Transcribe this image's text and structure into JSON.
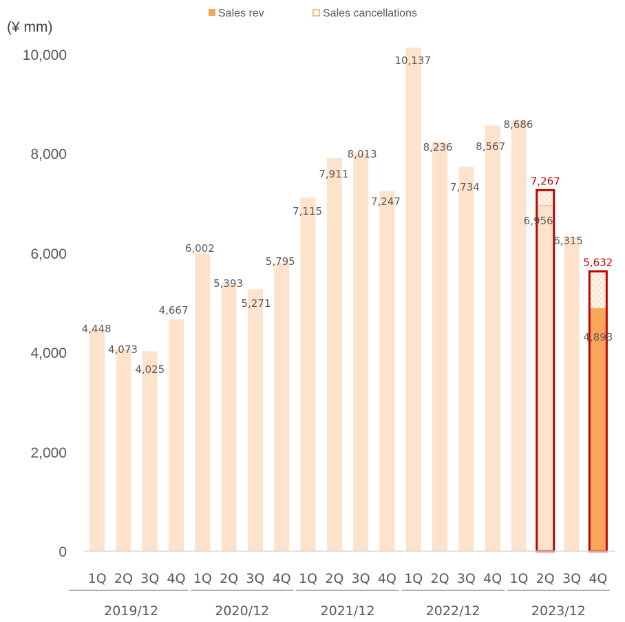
{
  "chart_data": {
    "type": "bar",
    "unit_label": "(¥ mm)",
    "legend": [
      {
        "name": "Sales rev",
        "color": "#f9a55a",
        "style": "filled"
      },
      {
        "name": "Sales cancellations",
        "color": "#f9a55a",
        "style": "outline"
      }
    ],
    "legend_position": "top",
    "ylim": [
      0,
      10000
    ],
    "yticks": [
      0,
      2000,
      4000,
      6000,
      8000,
      10000
    ],
    "ytick_labels": [
      "0",
      "2,000",
      "4,000",
      "6,000",
      "8,000",
      "10,000"
    ],
    "grid": false,
    "groups": [
      {
        "label": "2019/12",
        "quarters": [
          "1Q",
          "2Q",
          "3Q",
          "4Q"
        ]
      },
      {
        "label": "2020/12",
        "quarters": [
          "1Q",
          "2Q",
          "3Q",
          "4Q"
        ]
      },
      {
        "label": "2021/12",
        "quarters": [
          "1Q",
          "2Q",
          "3Q",
          "4Q"
        ]
      },
      {
        "label": "2022/12",
        "quarters": [
          "1Q",
          "2Q",
          "3Q",
          "4Q"
        ]
      },
      {
        "label": "2023/12",
        "quarters": [
          "1Q",
          "2Q",
          "3Q",
          "4Q"
        ]
      }
    ],
    "bars": [
      {
        "year": "2019/12",
        "quarter": "1Q",
        "value": 4448,
        "label": "4,448"
      },
      {
        "year": "2019/12",
        "quarter": "2Q",
        "value": 4073,
        "label": "4,073"
      },
      {
        "year": "2019/12",
        "quarter": "3Q",
        "value": 4025,
        "label": "4,025"
      },
      {
        "year": "2019/12",
        "quarter": "4Q",
        "value": 4667,
        "label": "4,667"
      },
      {
        "year": "2020/12",
        "quarter": "1Q",
        "value": 6002,
        "label": "6,002"
      },
      {
        "year": "2020/12",
        "quarter": "2Q",
        "value": 5393,
        "label": "5,393"
      },
      {
        "year": "2020/12",
        "quarter": "3Q",
        "value": 5271,
        "label": "5,271"
      },
      {
        "year": "2020/12",
        "quarter": "4Q",
        "value": 5795,
        "label": "5,795"
      },
      {
        "year": "2021/12",
        "quarter": "1Q",
        "value": 7115,
        "label": "7,115"
      },
      {
        "year": "2021/12",
        "quarter": "2Q",
        "value": 7911,
        "label": "7,911"
      },
      {
        "year": "2021/12",
        "quarter": "3Q",
        "value": 8013,
        "label": "8,013"
      },
      {
        "year": "2021/12",
        "quarter": "4Q",
        "value": 7247,
        "label": "7,247"
      },
      {
        "year": "2022/12",
        "quarter": "1Q",
        "value": 10137,
        "label": "10,137"
      },
      {
        "year": "2022/12",
        "quarter": "2Q",
        "value": 8236,
        "label": "8,236"
      },
      {
        "year": "2022/12",
        "quarter": "3Q",
        "value": 7734,
        "label": "7,734"
      },
      {
        "year": "2022/12",
        "quarter": "4Q",
        "value": 8567,
        "label": "8,567"
      },
      {
        "year": "2023/12",
        "quarter": "1Q",
        "value": 8686,
        "label": "8,686"
      },
      {
        "year": "2023/12",
        "quarter": "2Q",
        "value": 6956,
        "label": "6,956",
        "gross": 7267,
        "gross_label": "7,267",
        "highlight": true
      },
      {
        "year": "2023/12",
        "quarter": "3Q",
        "value": 6315,
        "label": "6,315"
      },
      {
        "year": "2023/12",
        "quarter": "4Q",
        "value": 4893,
        "label": "4,893",
        "gross": 5632,
        "gross_label": "5,632",
        "highlight": true,
        "solid": true
      }
    ],
    "colors": {
      "bar_light": "#fde3cb",
      "bar_solid": "#f9a55a",
      "highlight_border": "#c00000",
      "highlight_text": "#c00000",
      "axis": "#d9d9d9",
      "text": "#595959"
    }
  }
}
